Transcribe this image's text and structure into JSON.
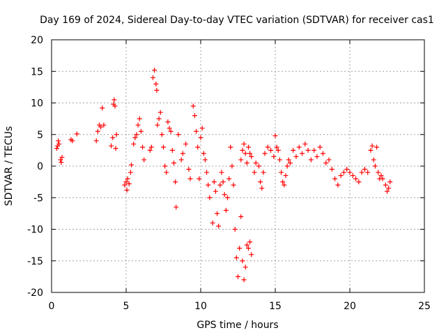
{
  "chart_data": {
    "type": "scatter",
    "title": "Day 169 of 2024, Sidereal Day-to-day VTEC variation (SDTVAR) for receiver cas1",
    "xlabel": "GPS time / hours",
    "ylabel": "SDTVAR / TECUs",
    "xlim": [
      0,
      25
    ],
    "ylim": [
      -20,
      20
    ],
    "xticks": [
      0,
      5,
      10,
      15,
      20,
      25
    ],
    "yticks": [
      -20,
      -15,
      -10,
      -5,
      0,
      5,
      10,
      15,
      20
    ],
    "grid": true,
    "marker": "+",
    "color": "#ff0000",
    "series": [
      {
        "name": "SDTVAR",
        "points": [
          [
            0.35,
            2.8
          ],
          [
            0.4,
            3.2
          ],
          [
            0.45,
            4.0
          ],
          [
            0.5,
            3.5
          ],
          [
            0.6,
            1.0
          ],
          [
            0.65,
            0.6
          ],
          [
            0.7,
            1.4
          ],
          [
            1.3,
            4.2
          ],
          [
            1.4,
            4.0
          ],
          [
            1.7,
            5.1
          ],
          [
            3.0,
            4.0
          ],
          [
            3.1,
            5.5
          ],
          [
            3.2,
            6.5
          ],
          [
            3.3,
            6.2
          ],
          [
            3.4,
            9.2
          ],
          [
            3.5,
            6.5
          ],
          [
            4.0,
            3.2
          ],
          [
            4.1,
            4.5
          ],
          [
            4.15,
            9.8
          ],
          [
            4.2,
            10.5
          ],
          [
            4.25,
            9.5
          ],
          [
            4.3,
            2.8
          ],
          [
            4.35,
            5.0
          ],
          [
            4.9,
            -3.0
          ],
          [
            5.0,
            -2.5
          ],
          [
            5.05,
            -3.8
          ],
          [
            5.1,
            -2.0
          ],
          [
            5.2,
            -2.8
          ],
          [
            5.3,
            -1.0
          ],
          [
            5.35,
            0.2
          ],
          [
            5.5,
            3.5
          ],
          [
            5.6,
            4.5
          ],
          [
            5.7,
            5.0
          ],
          [
            5.8,
            6.5
          ],
          [
            5.9,
            7.5
          ],
          [
            6.0,
            5.5
          ],
          [
            6.1,
            3.0
          ],
          [
            6.2,
            1.0
          ],
          [
            6.6,
            2.5
          ],
          [
            6.7,
            3.0
          ],
          [
            6.8,
            14.0
          ],
          [
            6.9,
            15.2
          ],
          [
            7.0,
            13.0
          ],
          [
            7.05,
            12.0
          ],
          [
            7.1,
            6.5
          ],
          [
            7.2,
            7.5
          ],
          [
            7.3,
            8.5
          ],
          [
            7.4,
            5.0
          ],
          [
            7.5,
            3.0
          ],
          [
            7.6,
            0.0
          ],
          [
            7.7,
            -1.0
          ],
          [
            7.8,
            7.0
          ],
          [
            7.9,
            6.0
          ],
          [
            8.0,
            5.5
          ],
          [
            8.1,
            2.5
          ],
          [
            8.2,
            0.5
          ],
          [
            8.3,
            -2.5
          ],
          [
            8.35,
            -6.5
          ],
          [
            8.5,
            5.0
          ],
          [
            8.7,
            1.0
          ],
          [
            8.8,
            2.0
          ],
          [
            9.0,
            3.5
          ],
          [
            9.2,
            -0.5
          ],
          [
            9.3,
            -2.0
          ],
          [
            9.5,
            9.5
          ],
          [
            9.6,
            8.0
          ],
          [
            9.7,
            5.5
          ],
          [
            9.8,
            3.0
          ],
          [
            9.9,
            -2.0
          ],
          [
            10.0,
            4.5
          ],
          [
            10.1,
            6.0
          ],
          [
            10.2,
            2.0
          ],
          [
            10.3,
            1.0
          ],
          [
            10.4,
            -1.0
          ],
          [
            10.5,
            -3.0
          ],
          [
            10.6,
            -5.0
          ],
          [
            10.8,
            -9.0
          ],
          [
            10.9,
            -2.5
          ],
          [
            11.0,
            -4.0
          ],
          [
            11.1,
            -7.5
          ],
          [
            11.2,
            -9.5
          ],
          [
            11.3,
            -3.0
          ],
          [
            11.4,
            -1.0
          ],
          [
            11.5,
            -2.5
          ],
          [
            11.6,
            -4.5
          ],
          [
            11.7,
            -7.0
          ],
          [
            11.8,
            -5.0
          ],
          [
            11.9,
            -2.0
          ],
          [
            12.0,
            3.0
          ],
          [
            12.1,
            0.0
          ],
          [
            12.2,
            -3.0
          ],
          [
            12.3,
            -10.0
          ],
          [
            12.4,
            -14.5
          ],
          [
            12.5,
            -17.5
          ],
          [
            12.6,
            -13.0
          ],
          [
            12.7,
            -8.0
          ],
          [
            12.8,
            -15.0
          ],
          [
            12.9,
            -18.0
          ],
          [
            13.0,
            -16.0
          ],
          [
            13.1,
            -12.5
          ],
          [
            13.2,
            -13.0
          ],
          [
            13.3,
            -12.0
          ],
          [
            13.4,
            -14.0
          ],
          [
            12.7,
            1.0
          ],
          [
            12.8,
            2.5
          ],
          [
            12.9,
            3.5
          ],
          [
            13.0,
            2.0
          ],
          [
            13.1,
            0.5
          ],
          [
            13.2,
            3.0
          ],
          [
            13.3,
            2.0
          ],
          [
            13.4,
            1.5
          ],
          [
            13.6,
            -1.0
          ],
          [
            13.7,
            0.5
          ],
          [
            13.9,
            0.0
          ],
          [
            14.0,
            -2.5
          ],
          [
            14.1,
            -3.5
          ],
          [
            14.2,
            -1.0
          ],
          [
            14.3,
            2.0
          ],
          [
            14.5,
            3.0
          ],
          [
            14.7,
            2.5
          ],
          [
            14.9,
            1.5
          ],
          [
            15.0,
            4.8
          ],
          [
            15.1,
            3.0
          ],
          [
            15.2,
            2.5
          ],
          [
            15.3,
            1.0
          ],
          [
            15.4,
            -1.0
          ],
          [
            15.5,
            -2.5
          ],
          [
            15.6,
            -3.0
          ],
          [
            15.7,
            -1.5
          ],
          [
            15.8,
            0.0
          ],
          [
            15.9,
            1.0
          ],
          [
            16.0,
            0.5
          ],
          [
            16.2,
            2.5
          ],
          [
            16.4,
            1.5
          ],
          [
            16.6,
            3.0
          ],
          [
            16.8,
            2.0
          ],
          [
            17.0,
            3.5
          ],
          [
            17.2,
            2.5
          ],
          [
            17.4,
            1.0
          ],
          [
            17.6,
            2.5
          ],
          [
            17.8,
            1.5
          ],
          [
            18.0,
            3.0
          ],
          [
            18.2,
            2.0
          ],
          [
            18.4,
            0.5
          ],
          [
            18.6,
            1.0
          ],
          [
            18.8,
            -0.5
          ],
          [
            19.0,
            -2.0
          ],
          [
            19.2,
            -3.0
          ],
          [
            19.4,
            -1.5
          ],
          [
            19.6,
            -1.0
          ],
          [
            19.8,
            -0.5
          ],
          [
            20.0,
            -1.0
          ],
          [
            20.2,
            -1.5
          ],
          [
            20.4,
            -2.0
          ],
          [
            20.6,
            -2.5
          ],
          [
            20.8,
            -1.0
          ],
          [
            21.0,
            -0.5
          ],
          [
            21.2,
            -1.0
          ],
          [
            21.4,
            2.5
          ],
          [
            21.5,
            3.2
          ],
          [
            21.6,
            1.0
          ],
          [
            21.7,
            0.0
          ],
          [
            21.8,
            3.0
          ],
          [
            21.9,
            -1.0
          ],
          [
            22.0,
            -2.0
          ],
          [
            22.1,
            -1.5
          ],
          [
            22.2,
            -2.0
          ],
          [
            22.4,
            -3.0
          ],
          [
            22.5,
            -4.0
          ],
          [
            22.6,
            -3.5
          ],
          [
            22.7,
            -2.5
          ]
        ]
      }
    ]
  }
}
